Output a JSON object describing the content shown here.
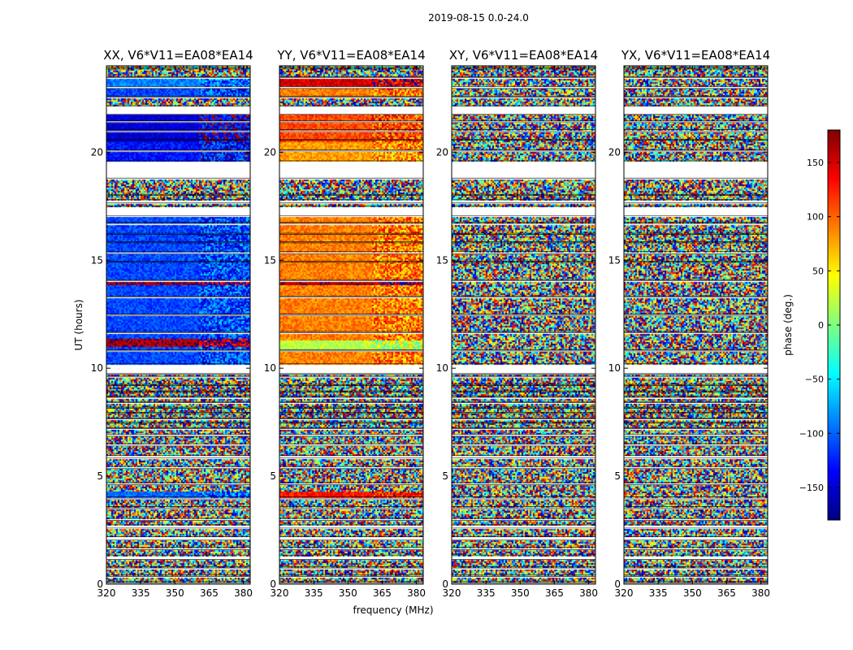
{
  "figure": {
    "suptitle": "2019-08-15 0.0-24.0"
  },
  "chart_data": {
    "type": "heatmap",
    "suptitle": "2019-08-15 0.0-24.0",
    "xlabel": "frequency (MHz)",
    "ylabel": "UT (hours)",
    "xlim": [
      320,
      383
    ],
    "ylim": [
      0,
      24
    ],
    "xticks": [
      320,
      335,
      350,
      365,
      380
    ],
    "yticks": [
      0,
      5,
      10,
      15,
      20
    ],
    "colorbar": {
      "label": "phase (deg.)",
      "range": [
        -180,
        180
      ],
      "ticks": [
        -150,
        -100,
        -50,
        0,
        50,
        100,
        150
      ],
      "tick_labels": [
        "−150",
        "−100",
        "−50",
        "0",
        "50",
        "100",
        "150"
      ],
      "colormap": [
        "#00007f",
        "#0000ff",
        "#007fff",
        "#00ffff",
        "#7fff7f",
        "#ffff00",
        "#ff7f00",
        "#ff0000",
        "#7f0000"
      ]
    },
    "panels": [
      {
        "title": "XX, V6*V11=EA08*EA14",
        "mode": "XX"
      },
      {
        "title": "YY, V6*V11=EA08*EA14",
        "mode": "YY"
      },
      {
        "title": "XY, V6*V11=EA08*EA14",
        "mode": "XY"
      },
      {
        "title": "YX, V6*V11=EA08*EA14",
        "mode": "YX"
      }
    ],
    "flagged_bands_hours": [
      [
        0.05,
        0.12
      ],
      [
        0.35,
        0.42
      ],
      [
        0.75,
        0.82
      ],
      [
        1.15,
        1.35
      ],
      [
        1.6,
        1.7
      ],
      [
        2.05,
        2.2
      ],
      [
        2.6,
        2.75
      ],
      [
        2.95,
        3.05
      ],
      [
        3.5,
        3.6
      ],
      [
        3.95,
        4.05
      ],
      [
        4.6,
        4.7
      ],
      [
        5.35,
        5.45
      ],
      [
        5.85,
        5.95
      ],
      [
        6.4,
        6.5
      ],
      [
        6.85,
        6.95
      ],
      [
        7.2,
        7.25
      ],
      [
        7.45,
        7.5
      ],
      [
        7.65,
        7.7
      ],
      [
        7.9,
        7.95
      ],
      [
        8.15,
        8.2
      ],
      [
        8.4,
        8.45
      ],
      [
        8.65,
        8.7
      ],
      [
        8.9,
        8.95
      ],
      [
        9.2,
        9.25
      ],
      [
        9.6,
        9.7
      ],
      [
        9.75,
        10.2
      ],
      [
        10.8,
        10.85
      ],
      [
        11.65,
        11.7
      ],
      [
        12.45,
        12.5
      ],
      [
        13.3,
        13.35
      ],
      [
        14.05,
        14.1
      ],
      [
        14.9,
        14.95
      ],
      [
        15.3,
        15.4
      ],
      [
        15.8,
        15.85
      ],
      [
        16.2,
        16.25
      ],
      [
        16.7,
        16.75
      ],
      [
        17.05,
        17.5
      ],
      [
        17.65,
        17.8
      ],
      [
        18.0,
        18.05
      ],
      [
        18.8,
        19.6
      ],
      [
        20.05,
        20.1
      ],
      [
        20.55,
        20.6
      ],
      [
        20.95,
        21.05
      ],
      [
        21.4,
        21.45
      ],
      [
        21.75,
        22.15
      ],
      [
        22.55,
        22.6
      ],
      [
        22.95,
        23.05
      ],
      [
        23.45,
        23.5
      ],
      [
        23.85,
        23.9
      ]
    ]
  }
}
